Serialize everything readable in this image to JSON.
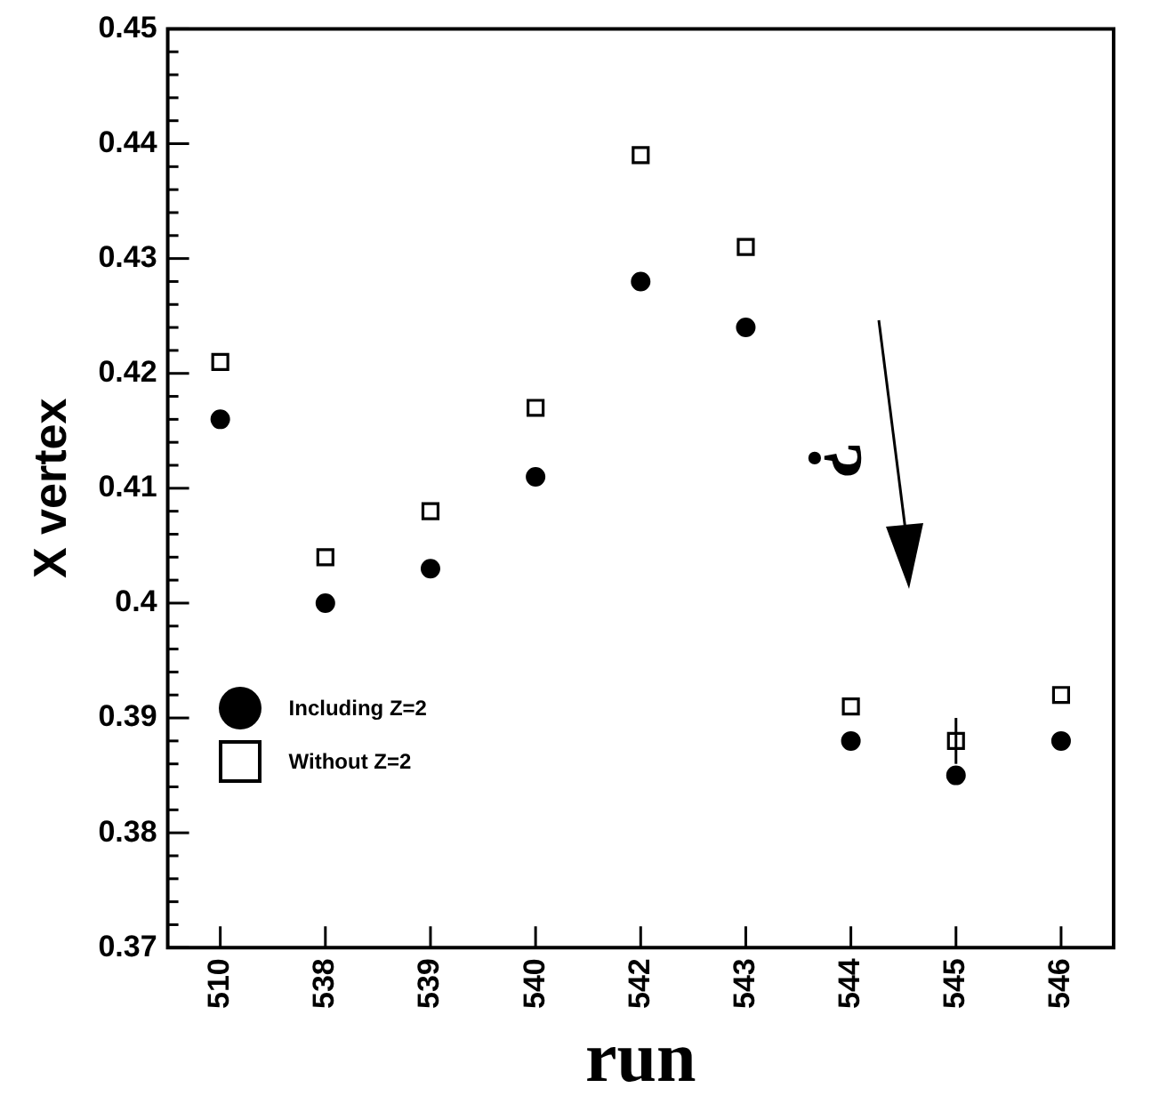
{
  "chart_data": {
    "type": "scatter",
    "xlabel": "run",
    "ylabel": "X vertex",
    "categories": [
      "510",
      "538",
      "539",
      "540",
      "542",
      "543",
      "544",
      "545",
      "546"
    ],
    "series": [
      {
        "name": "Including Z=2",
        "color": "#000000",
        "marker": "circle",
        "values": [
          0.416,
          0.4,
          0.403,
          0.411,
          0.428,
          0.424,
          0.388,
          0.385,
          0.388
        ]
      },
      {
        "name": "Without Z=2",
        "color": "#000000",
        "marker": "square",
        "values": [
          0.421,
          0.404,
          0.408,
          0.417,
          0.439,
          0.431,
          0.391,
          0.388,
          0.392
        ],
        "errors": [
          null,
          null,
          null,
          null,
          null,
          null,
          null,
          0.002,
          null
        ]
      }
    ],
    "ylim": [
      0.37,
      0.45
    ],
    "yticks": [
      0.37,
      0.38,
      0.39,
      0.4,
      0.41,
      0.42,
      0.43,
      0.44,
      0.45
    ],
    "grid": false,
    "legend": "bottom left",
    "annotations": [
      "?"
    ]
  }
}
